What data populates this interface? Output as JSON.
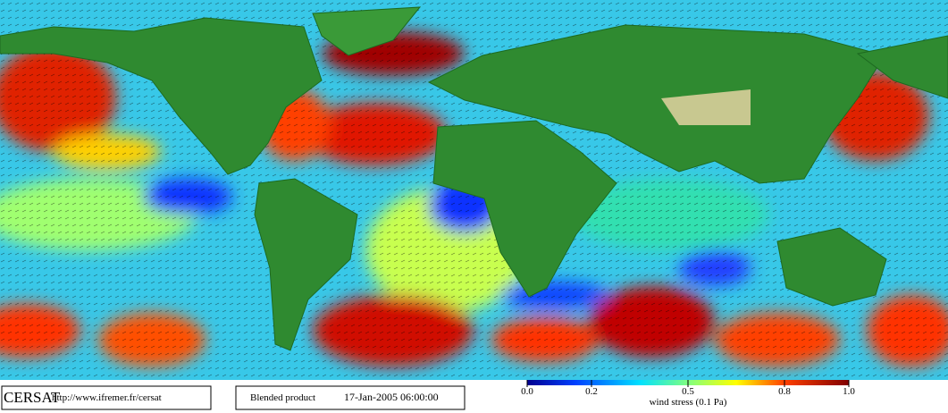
{
  "footer": {
    "logo": "CERSAT",
    "url": "http://www.ifremer.fr/cersat",
    "product": "Blended product",
    "date": "17-Jan-2005 06:00:00"
  },
  "colorbar": {
    "label": "wind stress (0.1 Pa)",
    "ticks": [
      {
        "value": 0,
        "label": "0.0"
      },
      {
        "value": 0.2,
        "label": "0.2"
      },
      {
        "value": 0.5,
        "label": "0.5"
      },
      {
        "value": 0.8,
        "label": "0.8"
      },
      {
        "value": 1,
        "label": "1.0"
      }
    ]
  }
}
